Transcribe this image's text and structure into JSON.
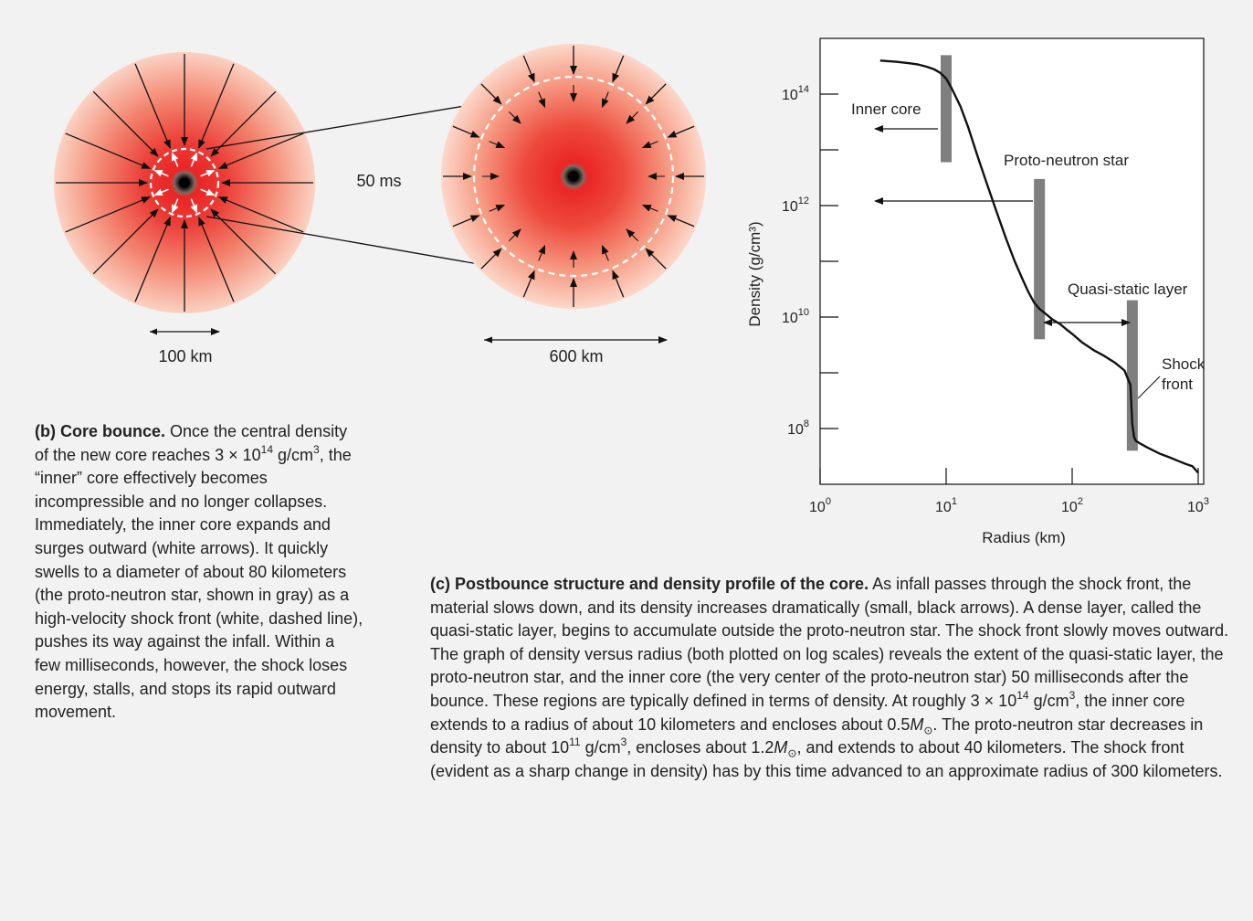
{
  "left_figure": {
    "time_label": "50 ms",
    "scale_small": "100 km",
    "scale_large": "600 km"
  },
  "chart_data": {
    "type": "line",
    "x_scale": "log",
    "y_scale": "log",
    "xlim": [
      1,
      1000
    ],
    "ylim": [
      10000000,
      1000000000000000.0
    ],
    "xlabel": "Radius (km)",
    "ylabel": "Density (g/cm³)",
    "x_ticks": [
      {
        "value": 1,
        "base": "10",
        "exp": "0"
      },
      {
        "value": 10,
        "base": "10",
        "exp": "1"
      },
      {
        "value": 100,
        "base": "10",
        "exp": "2"
      },
      {
        "value": 1000,
        "base": "10",
        "exp": "3"
      }
    ],
    "y_ticks": [
      {
        "value": 100000000.0,
        "base": "10",
        "exp": "8"
      },
      {
        "value": 10000000000.0,
        "base": "10",
        "exp": "10"
      },
      {
        "value": 1000000000000.0,
        "base": "10",
        "exp": "12"
      },
      {
        "value": 100000000000000.0,
        "base": "10",
        "exp": "14"
      }
    ],
    "y_minor_ticks": [
      1000000000.0,
      100000000000.0,
      10000000000000.0
    ],
    "series": [
      {
        "x": [
          3,
          4,
          5,
          6,
          7,
          8,
          9,
          10,
          11,
          13,
          15,
          18,
          21,
          25,
          30,
          35,
          40,
          45,
          50,
          55,
          60,
          70,
          80,
          90,
          100,
          120,
          150,
          180,
          220,
          260,
          290,
          300,
          310,
          320,
          340,
          400,
          500,
          600,
          700,
          800,
          900,
          1000
        ],
        "y": [
          400000000000000.0,
          380000000000000.0,
          360000000000000.0,
          340000000000000.0,
          310000000000000.0,
          280000000000000.0,
          240000000000000.0,
          190000000000000.0,
          130000000000000.0,
          60000000000000.0,
          25000000000000.0,
          7000000000000.0,
          2500000000000.0,
          800000000000.0,
          250000000000.0,
          100000000000.0,
          50000000000.0,
          28000000000.0,
          18000000000.0,
          14000000000.0,
          12000000000.0,
          9000000000.0,
          7500000000.0,
          6000000000.0,
          5000000000.0,
          3500000000.0,
          2500000000.0,
          2000000000.0,
          1500000000.0,
          1100000000.0,
          600000000.0,
          120000000.0,
          70000000.0,
          60000000.0,
          55000000.0,
          45000000.0,
          35000000.0,
          30000000.0,
          26000000.0,
          23000000.0,
          21000000.0,
          16000000.0
        ]
      }
    ],
    "regions": [
      {
        "label": "Inner core",
        "radius": 10,
        "y_top": 500000000000000.0,
        "y_bottom": 6000000000000.0
      },
      {
        "label": "Proto-neutron star",
        "radius": 55,
        "y_top": 3000000000000.0,
        "y_bottom": 4000000000.0
      },
      {
        "label": "Shock front",
        "radius": 300,
        "y_top": 20000000000.0,
        "y_bottom": 40000000.0
      }
    ],
    "annotations": [
      {
        "id": "inner-core",
        "text": "Inner core"
      },
      {
        "id": "pns",
        "text": "Proto-neutron star"
      },
      {
        "id": "quasi-static",
        "text": "Quasi-static layer"
      },
      {
        "id": "shock-1",
        "text": "Shock"
      },
      {
        "id": "shock-2",
        "text": "front"
      }
    ]
  },
  "caption_b": {
    "bold": "(b) Core bounce.",
    "segments": [
      " Once the central density of the new core reaches 3 × 10",
      "14",
      " g/cm",
      "3",
      ", the “inner” core effectively becomes incompressible and no longer collapses. Immediately, the inner core expands and surges outward (white arrows). It quickly swells to a diameter of about 80 kilometers (the proto-neutron star, shown in gray) as a high-velocity shock front (white, dashed line), pushes its way against the infall. Within a few milliseconds, however, the shock loses energy, stalls, and stops its rapid outward movement."
    ]
  },
  "caption_c": {
    "bold": "(c) Postbounce structure and density profile of the core.",
    "segments": [
      " As infall passes through the shock front, the material slows down, and its density increases dramatically (small, black arrows). A dense layer, called the quasi-static layer, begins to accumulate outside the proto-neutron star. The shock front slowly moves outward. The graph of density versus radius (both plotted on log scales) reveals the extent of the quasi-static layer, the proto-neutron star, and the inner core (the very center of the proto-neutron star) 50 milliseconds after the bounce. These regions are typically defined in terms of density. At roughly 3 × 10",
      "14",
      " g/cm",
      "3",
      ", the inner core extends to a radius of about 10 kilometers and encloses about 0.5",
      "M",
      "⊙",
      ". The proto-neutron star decreases in density to about 10",
      "11",
      " g/cm",
      "3",
      ", encloses about 1.2",
      "M",
      "⊙",
      ", and extends to about 40 kilometers. The shock front (evident as a sharp change in density) has by this time advanced to an approximate radius of 300 kilometers."
    ]
  }
}
